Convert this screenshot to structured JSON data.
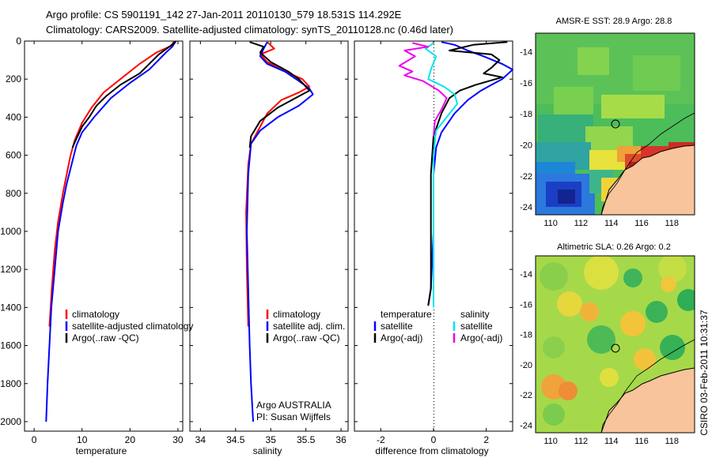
{
  "header": {
    "line1": "Argo profile: CS 5901191_142 27-Jan-2011 20110130_579 18.531S 114.292E",
    "line2": "Climatology: CARS2009. Satellite-adjusted climatology: synTS_20110128.nc (0.46d later)"
  },
  "credit": "CSIRO 03-Feb-2011 10:31:37",
  "colors": {
    "climatology": "#ff0000",
    "satellite": "#0000ff",
    "argo": "#000000",
    "salinity_satellite": "#00e5ee",
    "salinity_argo": "#ee00ee",
    "land": "#f7c49b"
  },
  "chart_data": [
    {
      "type": "line",
      "name": "temperature-profile",
      "xlabel": "temperature",
      "ylabel": "",
      "xlim": [
        -2,
        31
      ],
      "ylim": [
        2050,
        0
      ],
      "xticks": [
        "0",
        "10",
        "20",
        "30"
      ],
      "yticks": [
        "0",
        "200",
        "400",
        "600",
        "800",
        "1000",
        "1200",
        "1400",
        "1600",
        "1800",
        "2000"
      ],
      "legend": [
        "climatology",
        "satellite-adjusted climatology",
        "Argo(..raw -QC)"
      ],
      "series": [
        {
          "name": "climatology",
          "color": "#ff0000",
          "points": [
            [
              29.2,
              0
            ],
            [
              28.6,
              25
            ],
            [
              25.5,
              60
            ],
            [
              22,
              120
            ],
            [
              18,
              200
            ],
            [
              14.5,
              270
            ],
            [
              12,
              350
            ],
            [
              10,
              430
            ],
            [
              8.5,
              520
            ],
            [
              7.6,
              600
            ],
            [
              6.8,
              700
            ],
            [
              6,
              800
            ],
            [
              5,
              950
            ],
            [
              4.3,
              1100
            ],
            [
              3.7,
              1300
            ],
            [
              3.2,
              1500
            ]
          ]
        },
        {
          "name": "satellite-adjusted climatology",
          "color": "#0000ff",
          "points": [
            [
              29.6,
              0
            ],
            [
              28.8,
              30
            ],
            [
              27.5,
              60
            ],
            [
              24,
              150
            ],
            [
              20,
              220
            ],
            [
              16,
              300
            ],
            [
              12.5,
              400
            ],
            [
              10,
              480
            ],
            [
              8.8,
              550
            ],
            [
              7.8,
              650
            ],
            [
              6.8,
              750
            ],
            [
              6,
              850
            ],
            [
              5,
              1000
            ],
            [
              4.3,
              1200
            ],
            [
              3.6,
              1400
            ],
            [
              3.2,
              1600
            ],
            [
              2.8,
              1800
            ],
            [
              2.5,
              2000
            ]
          ]
        },
        {
          "name": "Argo(..raw -QC)",
          "color": "#000000",
          "points": [
            [
              29.5,
              0
            ],
            [
              29,
              15
            ],
            [
              26,
              70
            ],
            [
              22,
              170
            ],
            [
              18,
              230
            ],
            [
              15,
              290
            ],
            [
              13,
              340
            ],
            [
              11.5,
              400
            ],
            [
              10,
              450
            ],
            [
              8.7,
              520
            ],
            [
              8,
              560
            ]
          ]
        }
      ]
    },
    {
      "type": "line",
      "name": "salinity-profile",
      "xlabel": "salinity",
      "xlim": [
        33.85,
        36.1
      ],
      "ylim": [
        2050,
        0
      ],
      "xticks": [
        "34",
        "34.5",
        "35",
        "35.5",
        "36"
      ],
      "legend": [
        "climatology",
        "satellite adj. clim.",
        "Argo(..raw -QC)"
      ],
      "annotations": [
        "Argo AUSTRALIA",
        "PI: Susan Wijffels"
      ],
      "series": [
        {
          "name": "climatology",
          "color": "#ff0000",
          "points": [
            [
              34.95,
              5
            ],
            [
              35.05,
              40
            ],
            [
              34.85,
              70
            ],
            [
              34.95,
              110
            ],
            [
              35.2,
              160
            ],
            [
              35.45,
              200
            ],
            [
              35.55,
              240
            ],
            [
              35.4,
              270
            ],
            [
              35.15,
              310
            ],
            [
              34.95,
              380
            ],
            [
              34.85,
              450
            ],
            [
              34.72,
              540
            ],
            [
              34.68,
              650
            ],
            [
              34.65,
              900
            ],
            [
              34.66,
              1200
            ],
            [
              34.68,
              1500
            ]
          ]
        },
        {
          "name": "satellite adj. clim.",
          "color": "#0000ff",
          "points": [
            [
              34.95,
              5
            ],
            [
              34.9,
              40
            ],
            [
              34.85,
              80
            ],
            [
              34.95,
              120
            ],
            [
              35.2,
              160
            ],
            [
              35.4,
              210
            ],
            [
              35.55,
              250
            ],
            [
              35.6,
              280
            ],
            [
              35.4,
              340
            ],
            [
              35.1,
              400
            ],
            [
              34.85,
              470
            ],
            [
              34.72,
              540
            ],
            [
              34.68,
              700
            ],
            [
              34.66,
              1000
            ],
            [
              34.68,
              1300
            ],
            [
              34.7,
              1600
            ],
            [
              34.72,
              1800
            ],
            [
              34.75,
              2000
            ]
          ]
        },
        {
          "name": "Argo(..raw -QC)",
          "color": "#000000",
          "points": [
            [
              34.7,
              5
            ],
            [
              34.9,
              30
            ],
            [
              34.85,
              60
            ],
            [
              35.0,
              110
            ],
            [
              35.25,
              160
            ],
            [
              35.4,
              200
            ],
            [
              35.5,
              240
            ],
            [
              35.55,
              260
            ],
            [
              35.4,
              290
            ],
            [
              35.1,
              350
            ],
            [
              34.85,
              420
            ],
            [
              34.72,
              500
            ],
            [
              34.7,
              560
            ]
          ]
        }
      ]
    },
    {
      "type": "line",
      "name": "difference-profile",
      "xlabel": "difference from climatology",
      "xlim": [
        -3,
        3
      ],
      "ylim": [
        2050,
        0
      ],
      "xticks": [
        "-2",
        "0",
        "2"
      ],
      "legend": {
        "temperature": [
          "temperature",
          "satellite",
          "Argo(-adj)"
        ],
        "salinity": [
          "salinity",
          "satellite",
          "Argo(-adj)"
        ]
      },
      "series": [
        {
          "name": "temperature satellite",
          "color": "#0000ff",
          "points": [
            [
              0.3,
              5
            ],
            [
              0.8,
              20
            ],
            [
              1.3,
              50
            ],
            [
              1.9,
              80
            ],
            [
              2.6,
              120
            ],
            [
              3.0,
              150
            ],
            [
              2.6,
              200
            ],
            [
              2.2,
              230
            ],
            [
              1.8,
              260
            ],
            [
              1.3,
              310
            ],
            [
              0.8,
              380
            ],
            [
              0.3,
              480
            ],
            [
              0.1,
              560
            ],
            [
              0.0,
              700
            ],
            [
              0.0,
              1000
            ],
            [
              -0.1,
              1300
            ],
            [
              -0.2,
              1390
            ]
          ]
        },
        {
          "name": "temperature Argo(-adj)",
          "color": "#000000",
          "points": [
            [
              2.8,
              5
            ],
            [
              1.5,
              20
            ],
            [
              0.6,
              50
            ],
            [
              2.2,
              70
            ],
            [
              2.5,
              100
            ],
            [
              2.2,
              140
            ],
            [
              1.9,
              170
            ],
            [
              2.6,
              190
            ],
            [
              1.6,
              230
            ],
            [
              1.0,
              260
            ],
            [
              0.6,
              300
            ],
            [
              0.3,
              380
            ],
            [
              0.0,
              500
            ],
            [
              -0.1,
              700
            ],
            [
              -0.1,
              1000
            ],
            [
              -0.1,
              1300
            ],
            [
              -0.2,
              1390
            ]
          ]
        },
        {
          "name": "salinity satellite",
          "color": "#00e5ee",
          "points": [
            [
              0.0,
              10
            ],
            [
              -0.3,
              40
            ],
            [
              0.1,
              80
            ],
            [
              -0.1,
              150
            ],
            [
              -0.2,
              200
            ],
            [
              0.4,
              240
            ],
            [
              0.8,
              280
            ],
            [
              0.9,
              330
            ],
            [
              0.5,
              400
            ],
            [
              0.1,
              470
            ],
            [
              0.0,
              600
            ],
            [
              0.0,
              900
            ],
            [
              0.0,
              1200
            ],
            [
              0.0,
              1400
            ]
          ]
        },
        {
          "name": "salinity Argo(-adj)",
          "color": "#ee00ee",
          "points": [
            [
              -0.8,
              10
            ],
            [
              -0.2,
              30
            ],
            [
              -1.1,
              50
            ],
            [
              -0.7,
              80
            ],
            [
              -1.3,
              130
            ],
            [
              -0.8,
              160
            ],
            [
              -1.1,
              180
            ],
            [
              -0.4,
              210
            ],
            [
              0.2,
              260
            ],
            [
              0.5,
              300
            ],
            [
              0.3,
              360
            ],
            [
              0.05,
              420
            ],
            [
              0.0,
              500
            ]
          ]
        }
      ]
    },
    {
      "type": "heatmap",
      "name": "sst-map",
      "title": "AMSR-E SST: 28.9 Argo: 28.8",
      "xlim": [
        109,
        119.5
      ],
      "ylim": [
        -24.5,
        -12.8
      ],
      "xticks": [
        "110",
        "112",
        "114",
        "116",
        "118"
      ],
      "yticks": [
        "-14",
        "-16",
        "-18",
        "-20",
        "-22",
        "-24"
      ],
      "argo_position": [
        114.29,
        -18.53
      ]
    },
    {
      "type": "heatmap",
      "name": "sla-map",
      "title": "Altimetric SLA: 0.26 Argo: 0.2",
      "xlim": [
        109,
        119.5
      ],
      "ylim": [
        -24.5,
        -12.8
      ],
      "xticks": [
        "110",
        "112",
        "114",
        "116",
        "118"
      ],
      "yticks": [
        "-14",
        "-16",
        "-18",
        "-20",
        "-22",
        "-24"
      ],
      "argo_position": [
        114.29,
        -18.53
      ]
    }
  ]
}
